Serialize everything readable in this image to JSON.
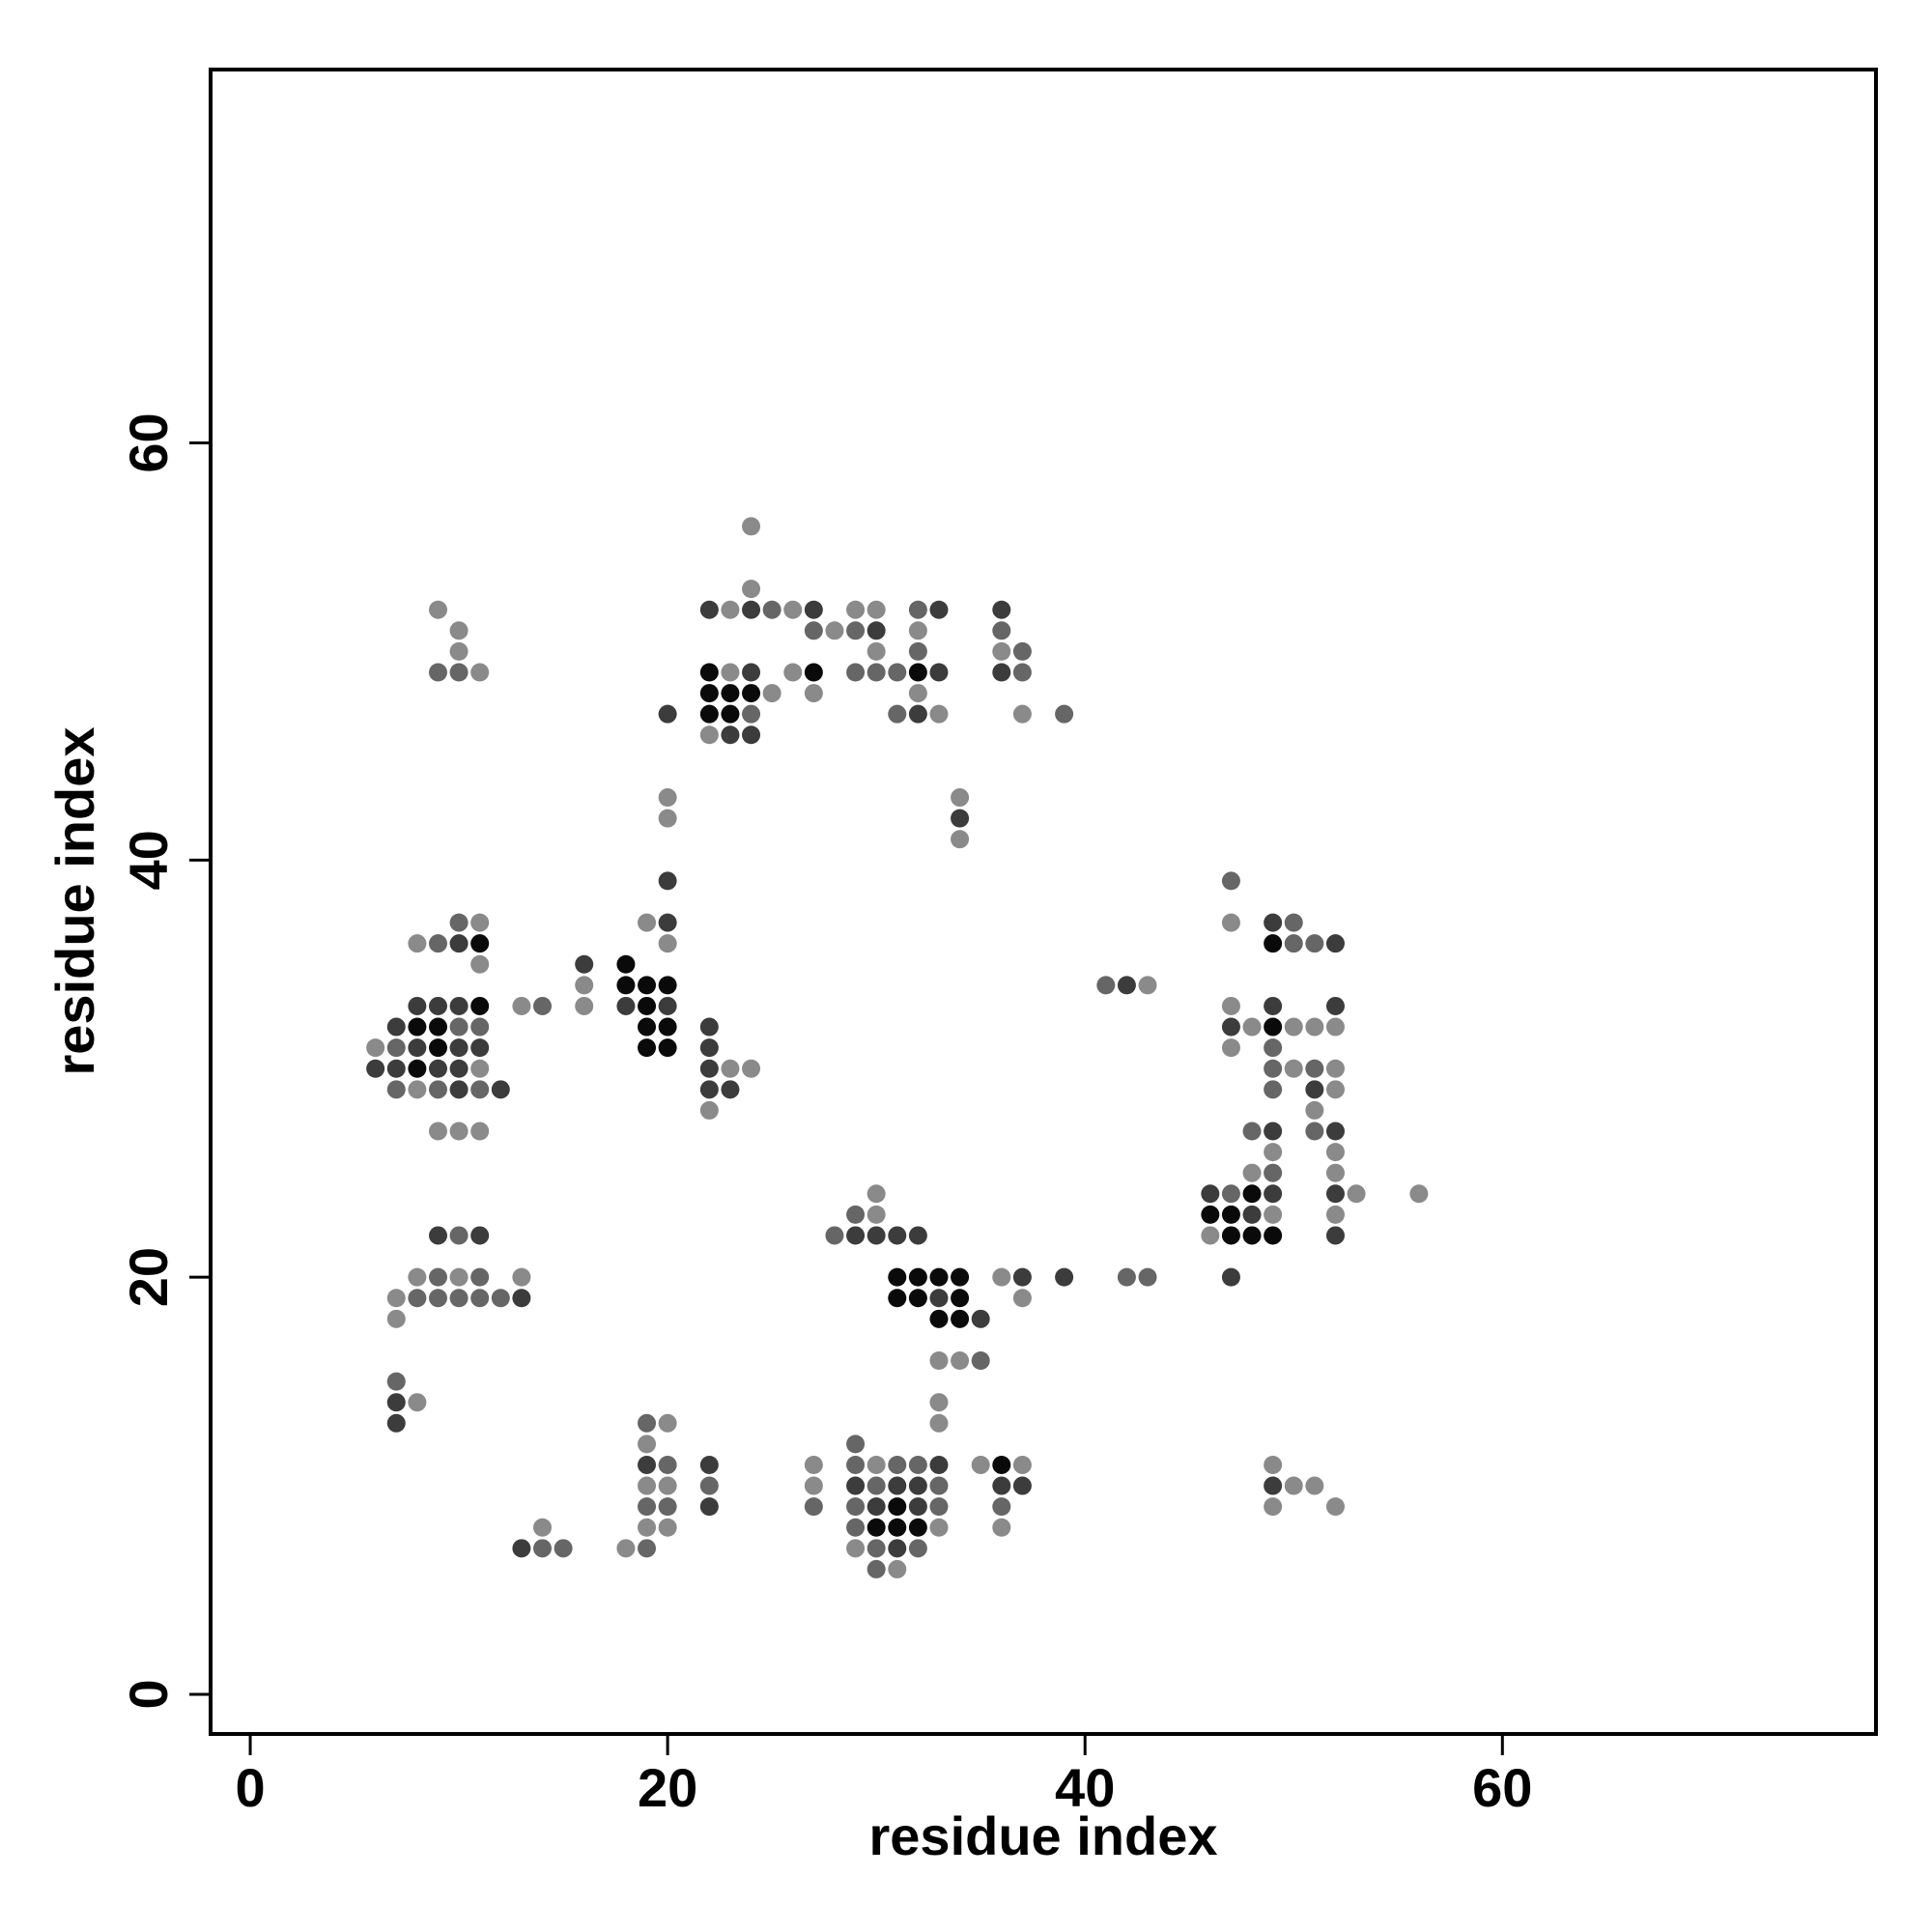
{
  "chart_data": {
    "type": "scatter",
    "x_label": "residue index",
    "y_label": "residue index",
    "xlim": [
      -1.9,
      77.9
    ],
    "ylim": [
      -1.9,
      77.9
    ],
    "xticks": [
      0,
      20,
      40,
      60
    ],
    "yticks": [
      0,
      20,
      40,
      60
    ],
    "series": [
      {
        "color": "#0a0a0a",
        "x": [
          22,
          27,
          32,
          22,
          23,
          24,
          22,
          23,
          11,
          49,
          18,
          18,
          19,
          20,
          11,
          19,
          8,
          9,
          19,
          20,
          49,
          9,
          19,
          20,
          8,
          48,
          46,
          47,
          47,
          48,
          49,
          31,
          32,
          33,
          34,
          31,
          32,
          34,
          33,
          34,
          36,
          31,
          30,
          31,
          32
        ],
        "values": [
          49,
          49,
          49,
          48,
          48,
          48,
          47,
          47,
          36,
          36,
          35,
          34,
          34,
          34,
          33,
          33,
          32,
          32,
          32,
          32,
          32,
          31,
          31,
          31,
          30,
          24,
          23,
          23,
          22,
          22,
          22,
          20,
          20,
          20,
          20,
          19,
          19,
          19,
          18,
          18,
          11,
          9,
          8,
          8,
          8
        ]
      },
      {
        "color": "#3c3c3c",
        "x": [
          22,
          24,
          27,
          33,
          36,
          30,
          24,
          33,
          36,
          20,
          32,
          23,
          24,
          34,
          20,
          20,
          49,
          10,
          52,
          16,
          42,
          8,
          9,
          10,
          18,
          20,
          49,
          52,
          7,
          22,
          47,
          8,
          10,
          11,
          22,
          6,
          7,
          9,
          10,
          22,
          10,
          12,
          22,
          23,
          51,
          49,
          52,
          46,
          49,
          52,
          48,
          9,
          11,
          29,
          30,
          31,
          32,
          52,
          37,
          39,
          47,
          13,
          33,
          35,
          7,
          7,
          19,
          22,
          33,
          29,
          31,
          32,
          36,
          37,
          49,
          22,
          30,
          32,
          13,
          31
        ],
        "values": [
          52,
          52,
          52,
          52,
          52,
          51,
          49,
          49,
          49,
          47,
          47,
          46,
          46,
          42,
          39,
          37,
          37,
          36,
          36,
          35,
          34,
          33,
          33,
          33,
          33,
          33,
          33,
          33,
          32,
          32,
          32,
          31,
          31,
          31,
          31,
          30,
          30,
          30,
          30,
          30,
          29,
          29,
          29,
          29,
          29,
          27,
          27,
          24,
          24,
          24,
          23,
          22,
          22,
          22,
          22,
          22,
          22,
          22,
          20,
          20,
          20,
          19,
          19,
          18,
          14,
          13,
          11,
          11,
          11,
          10,
          10,
          10,
          10,
          10,
          10,
          9,
          9,
          9,
          7,
          7
        ]
      },
      {
        "color": "#666666",
        "x": [
          32,
          25,
          27,
          29,
          36,
          32,
          37,
          9,
          10,
          29,
          30,
          31,
          37,
          24,
          31,
          39,
          47,
          10,
          50,
          9,
          50,
          51,
          41,
          14,
          10,
          11,
          7,
          49,
          49,
          51,
          7,
          9,
          11,
          49,
          48,
          51,
          49,
          47,
          29,
          10,
          28,
          9,
          11,
          42,
          43,
          8,
          9,
          10,
          11,
          12,
          35,
          7,
          19,
          29,
          20,
          29,
          31,
          32,
          22,
          30,
          33,
          19,
          20,
          27,
          29,
          33,
          36,
          29,
          14,
          15,
          19,
          30,
          32,
          30
        ],
        "values": [
          52,
          52,
          51,
          51,
          51,
          50,
          50,
          49,
          49,
          49,
          49,
          49,
          49,
          47,
          47,
          47,
          39,
          37,
          37,
          36,
          36,
          36,
          34,
          33,
          32,
          32,
          31,
          31,
          30,
          30,
          29,
          29,
          29,
          29,
          27,
          27,
          25,
          24,
          23,
          22,
          22,
          20,
          20,
          20,
          20,
          19,
          19,
          19,
          19,
          19,
          16,
          15,
          13,
          12,
          11,
          11,
          11,
          11,
          10,
          10,
          10,
          9,
          9,
          9,
          9,
          9,
          9,
          8,
          7,
          7,
          7,
          7,
          7,
          6
        ]
      },
      {
        "color": "#8a8a8a",
        "x": [
          24,
          24,
          9,
          23,
          26,
          29,
          30,
          10,
          28,
          32,
          10,
          30,
          36,
          11,
          23,
          26,
          25,
          27,
          32,
          33,
          37,
          22,
          20,
          34,
          20,
          34,
          11,
          19,
          47,
          8,
          20,
          11,
          16,
          43,
          13,
          16,
          47,
          48,
          50,
          51,
          52,
          6,
          47,
          11,
          23,
          24,
          50,
          52,
          8,
          52,
          22,
          51,
          9,
          10,
          11,
          49,
          52,
          48,
          52,
          30,
          53,
          56,
          30,
          49,
          52,
          46,
          8,
          10,
          13,
          36,
          7,
          37,
          7,
          33,
          34,
          8,
          33,
          20,
          33,
          19,
          27,
          30,
          35,
          37,
          49,
          19,
          20,
          27,
          50,
          51,
          49,
          52,
          14,
          19,
          20,
          33,
          36,
          18,
          29,
          31
        ],
        "values": [
          56,
          53,
          52,
          52,
          52,
          52,
          52,
          51,
          51,
          51,
          50,
          50,
          50,
          49,
          49,
          49,
          48,
          48,
          48,
          47,
          47,
          46,
          43,
          43,
          42,
          41,
          37,
          37,
          37,
          36,
          36,
          35,
          34,
          34,
          33,
          33,
          33,
          32,
          32,
          32,
          32,
          31,
          31,
          30,
          30,
          30,
          30,
          30,
          29,
          29,
          28,
          28,
          27,
          27,
          27,
          26,
          26,
          25,
          25,
          24,
          24,
          24,
          23,
          23,
          23,
          22,
          20,
          20,
          20,
          20,
          19,
          19,
          18,
          16,
          16,
          14,
          14,
          13,
          13,
          12,
          11,
          11,
          11,
          11,
          11,
          10,
          10,
          10,
          10,
          10,
          9,
          9,
          8,
          8,
          8,
          8,
          8,
          7,
          7,
          6
        ]
      }
    ]
  }
}
